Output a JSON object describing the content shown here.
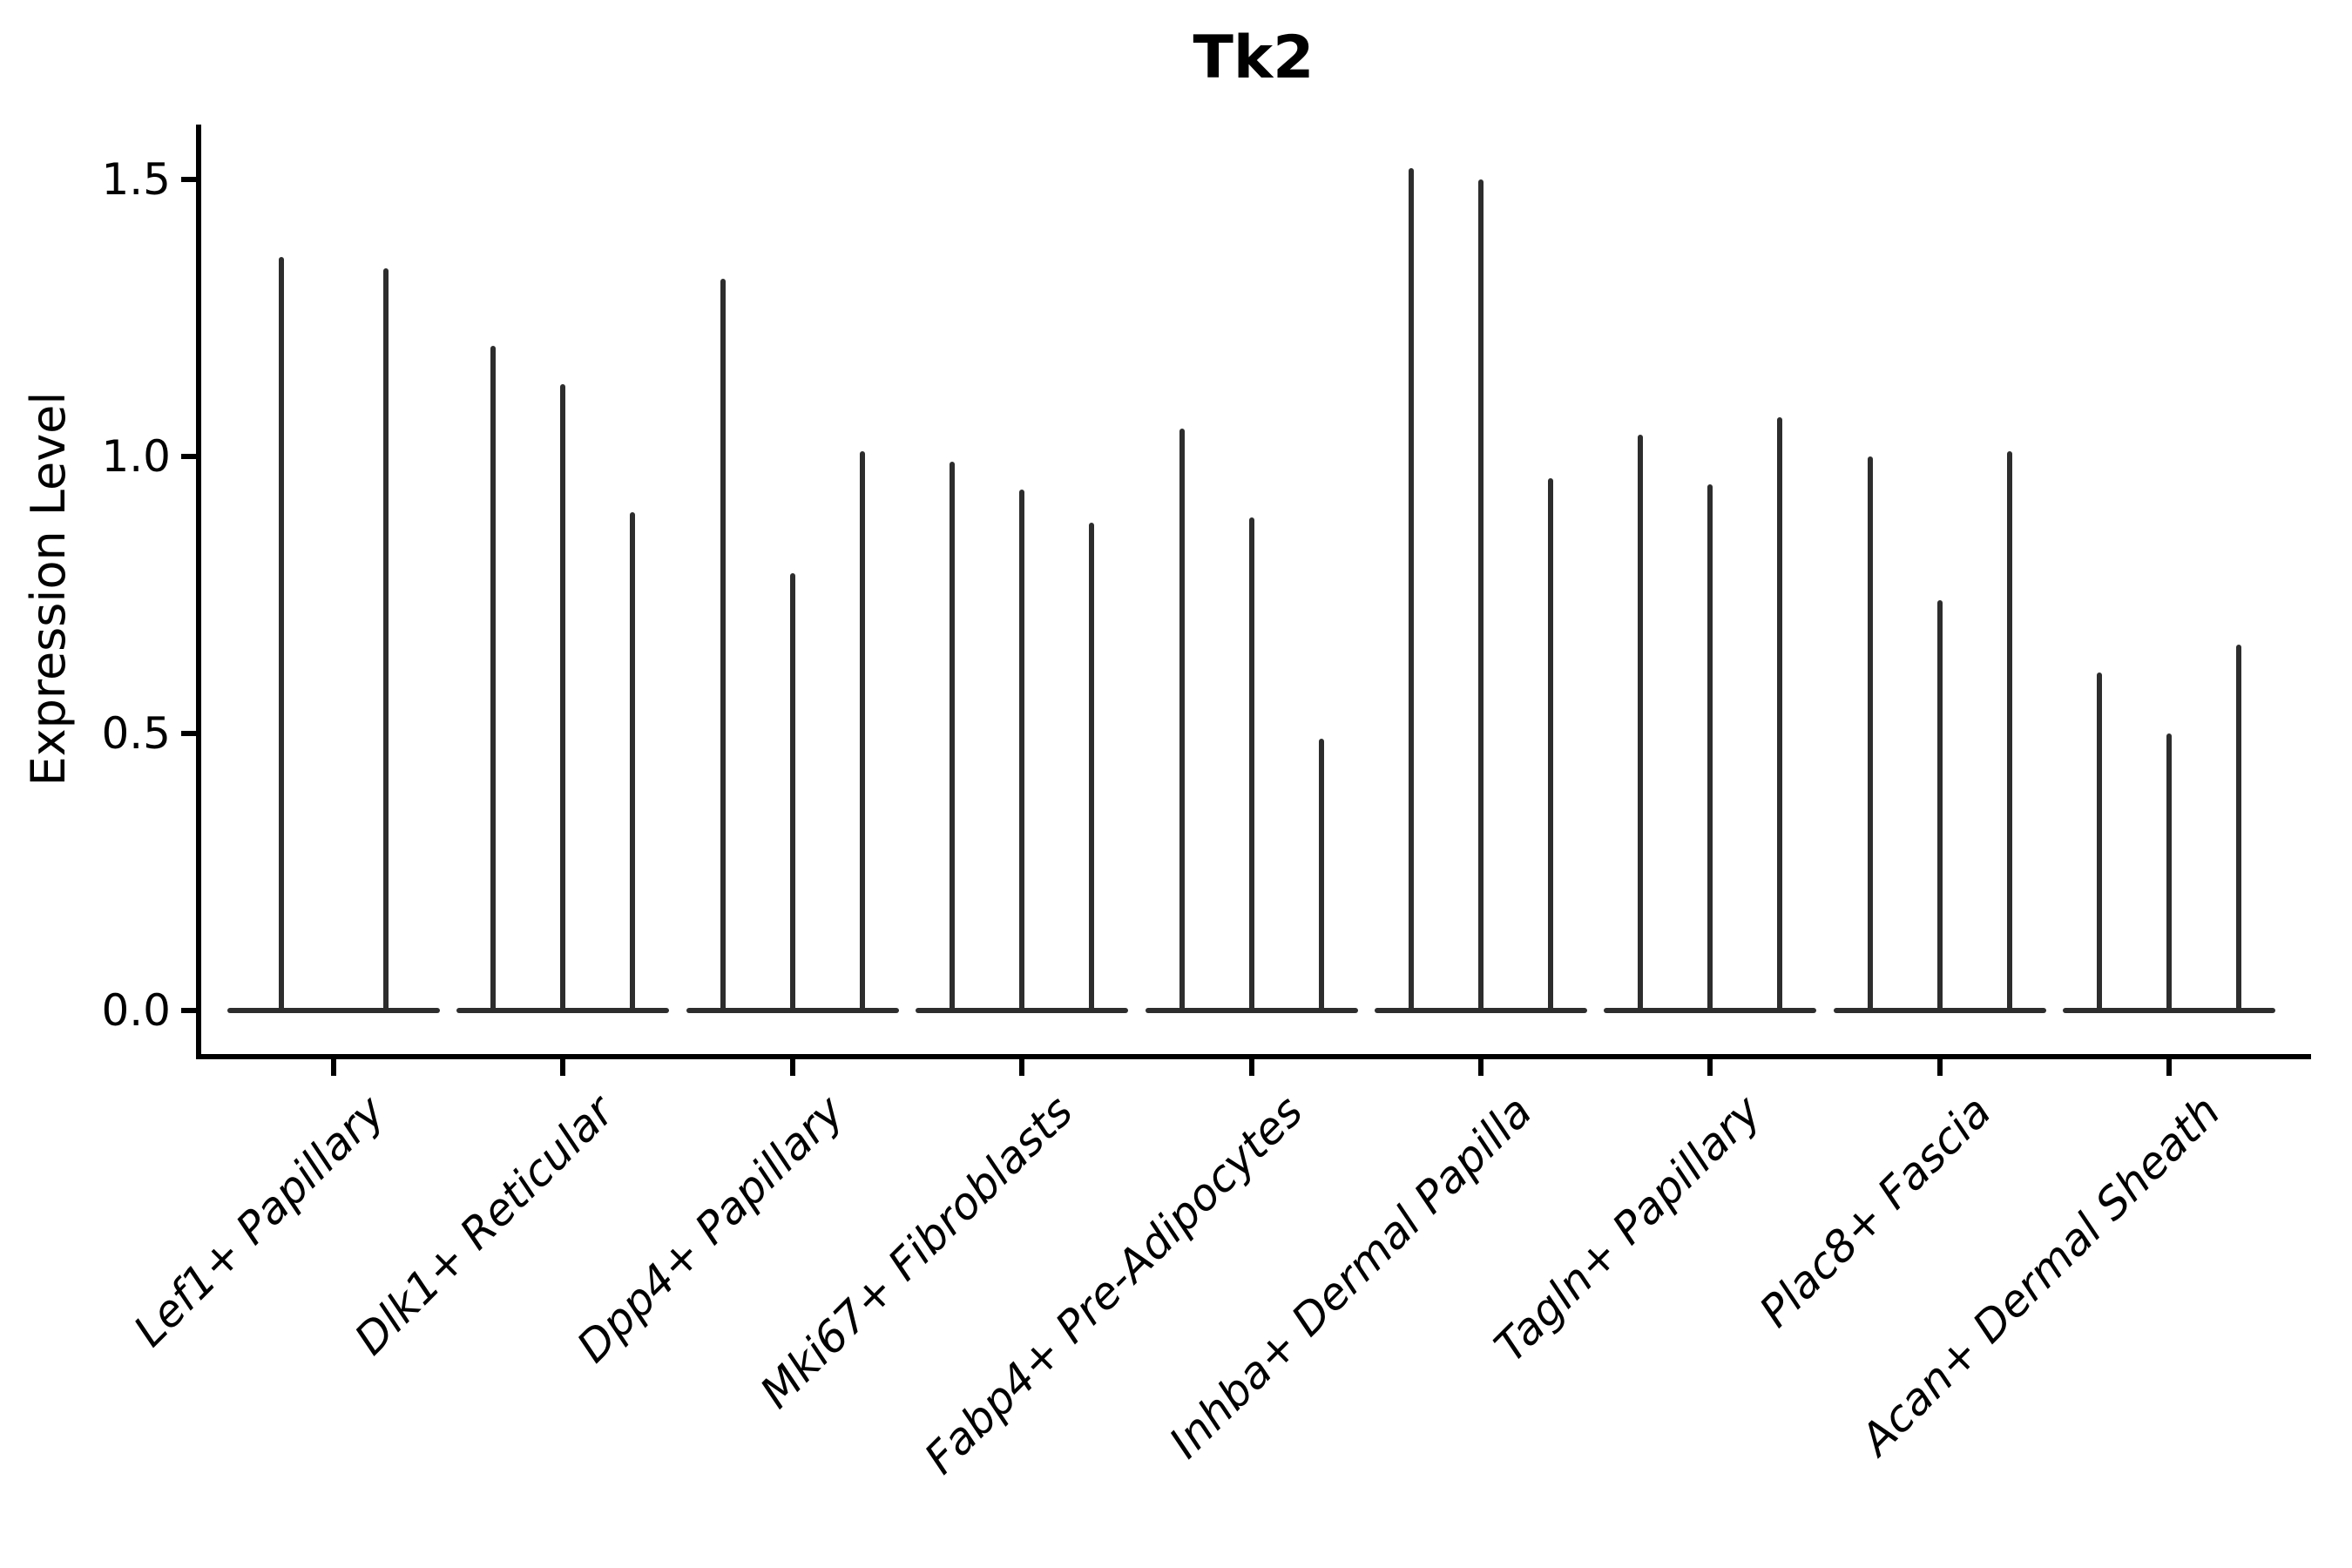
{
  "chart_data": {
    "type": "violin",
    "title": "Tk2",
    "ylabel": "Expression Level",
    "xlabel": "",
    "categories": [
      "Lef1+ Papillary",
      "Dlk1+ Reticular",
      "Dpp4+ Papillary",
      "Mki67+ Fibroblasts",
      "Fabp4+ Pre-Adipocytes",
      "Inhba+ Dermal Papilla",
      "Tagln+ Papillary",
      "Plac8+ Fascia",
      "Acan+ Dermal Sheath"
    ],
    "values": [
      [
        1.36,
        1.34
      ],
      [
        1.2,
        1.13,
        0.9
      ],
      [
        1.32,
        0.79,
        1.01
      ],
      [
        0.99,
        0.94,
        0.88
      ],
      [
        1.05,
        0.89,
        0.49
      ],
      [
        1.52,
        1.5,
        0.96
      ],
      [
        1.04,
        0.95,
        1.07
      ],
      [
        1.0,
        0.74,
        1.01
      ],
      [
        0.61,
        0.5,
        0.66
      ]
    ],
    "violins_per_category": [
      2,
      3,
      3,
      3,
      3,
      3,
      3,
      3,
      3
    ],
    "ytick_labels": [
      "0.0",
      "0.5",
      "1.0",
      "1.5"
    ],
    "ytick_values": [
      0.0,
      0.5,
      1.0,
      1.5
    ],
    "ylim": [
      -0.08,
      1.6
    ],
    "grid": false,
    "legend": null,
    "description": "Each violin is a flat wide base at 0 with a thin vertical spike up to the max expression value",
    "colors": {
      "violin": "#2d2d2d",
      "axis": "#000000",
      "text": "#000000",
      "background": "#ffffff"
    }
  }
}
